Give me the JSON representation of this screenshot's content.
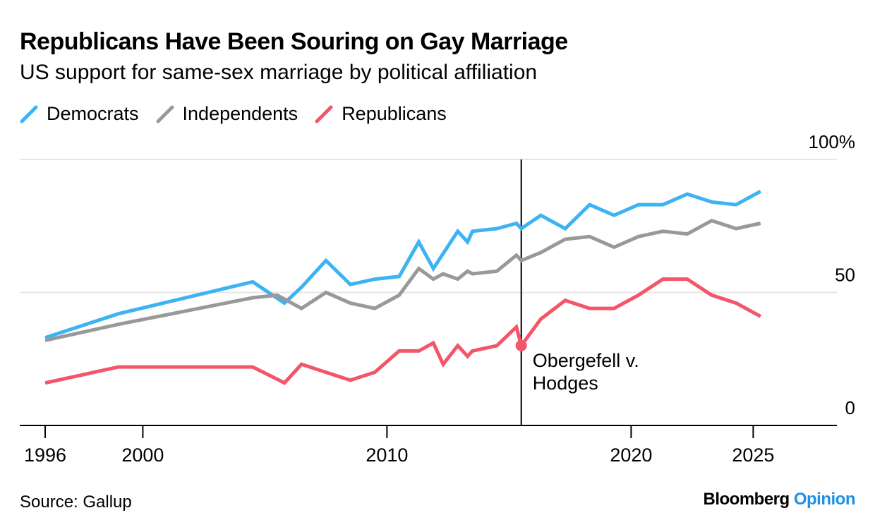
{
  "title": "Republicans Have Been Souring on Gay Marriage",
  "subtitle": "US support for same-sex marriage by political affiliation",
  "source": "Source: Gallup",
  "brand": {
    "name": "Bloomberg",
    "product": "Opinion"
  },
  "chart_data": {
    "type": "line",
    "title": "Republicans Have Been Souring on Gay Marriage",
    "subtitle": "US support for same-sex marriage by political affiliation",
    "xlabel": "",
    "ylabel": "",
    "xlim": [
      1995,
      2028
    ],
    "ylim": [
      0,
      100
    ],
    "x_ticks": [
      1996,
      2000,
      2010,
      2020,
      2025
    ],
    "y_ticks": [
      {
        "value": 0,
        "label": "0"
      },
      {
        "value": 50,
        "label": "50"
      },
      {
        "value": 100,
        "label": "100%"
      }
    ],
    "grid": "horizontal",
    "legend_position": "top-left",
    "annotation": {
      "x": 2015.5,
      "y": 30,
      "text_lines": [
        "Obergefell v.",
        "Hodges"
      ]
    },
    "series": [
      {
        "name": "Democrats",
        "color": "#3db3f3",
        "x": [
          1996,
          1999,
          2004.5,
          2005.8,
          2006.5,
          2007.5,
          2008.5,
          2009.5,
          2010.5,
          2011.3,
          2011.9,
          2012.9,
          2013.3,
          2013.5,
          2014.5,
          2015.3,
          2015.5,
          2016.3,
          2017.3,
          2018.3,
          2019.3,
          2020.3,
          2021.3,
          2022.3,
          2023.3,
          2024.3,
          2025.3
        ],
        "y": [
          33,
          42,
          54,
          46,
          52,
          62,
          53,
          55,
          56,
          69,
          59,
          73,
          69,
          73,
          74,
          76,
          74,
          79,
          74,
          83,
          79,
          83,
          83,
          87,
          84,
          83,
          88
        ]
      },
      {
        "name": "Independents",
        "color": "#999999",
        "x": [
          1996,
          1999,
          2004.5,
          2005.5,
          2006.5,
          2007.5,
          2008.5,
          2009.5,
          2010.5,
          2011.3,
          2011.9,
          2012.3,
          2012.9,
          2013.3,
          2013.5,
          2014.5,
          2015.3,
          2015.5,
          2016.3,
          2017.3,
          2018.3,
          2019.3,
          2020.3,
          2021.3,
          2022.3,
          2023.3,
          2024.3,
          2025.3
        ],
        "y": [
          32,
          38,
          48,
          49,
          44,
          50,
          46,
          44,
          49,
          59,
          55,
          57,
          55,
          58,
          57,
          58,
          64,
          62,
          65,
          70,
          71,
          67,
          71,
          73,
          72,
          77,
          74,
          76
        ]
      },
      {
        "name": "Republicans",
        "color": "#f25668",
        "x": [
          1996,
          1999,
          2004.5,
          2005.8,
          2006.5,
          2007.5,
          2008.5,
          2009.5,
          2010.5,
          2011.3,
          2011.9,
          2012.3,
          2012.9,
          2013.3,
          2013.5,
          2014.5,
          2015.3,
          2015.5,
          2016.3,
          2017.3,
          2018.3,
          2019.3,
          2020.3,
          2021.3,
          2022.3,
          2023.3,
          2024.3,
          2025.3
        ],
        "y": [
          16,
          22,
          22,
          16,
          23,
          20,
          17,
          20,
          28,
          28,
          31,
          23,
          30,
          26,
          28,
          30,
          37,
          30,
          40,
          47,
          44,
          44,
          49,
          55,
          55,
          49,
          46,
          41
        ]
      }
    ]
  }
}
